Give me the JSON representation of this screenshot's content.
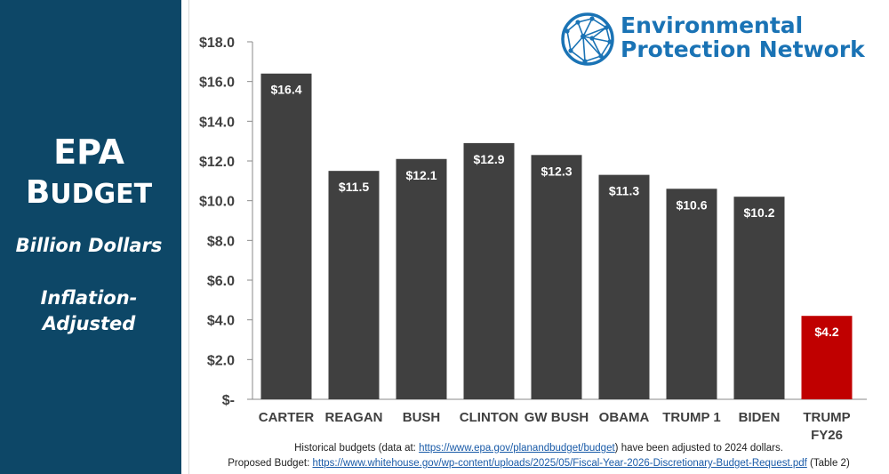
{
  "sidebar": {
    "title_line1": "EPA",
    "title_line2_big": "B",
    "title_line2_small": "UDGET",
    "subtitle1": "Billion Dollars",
    "subtitle2a": "Inflation-",
    "subtitle2b": "Adjusted"
  },
  "logo": {
    "line1": "Environmental",
    "line2": "Protection Network"
  },
  "colors": {
    "sidebar_bg": "#0d4767",
    "bar_default": "#404040",
    "bar_highlight": "#c00000",
    "logo_blue": "#1a73b5"
  },
  "chart_data": {
    "type": "bar",
    "categories": [
      [
        "CARTER"
      ],
      [
        "REAGAN"
      ],
      [
        "BUSH"
      ],
      [
        "CLINTON"
      ],
      [
        "GW BUSH"
      ],
      [
        "OBAMA"
      ],
      [
        "TRUMP 1"
      ],
      [
        "BIDEN"
      ],
      [
        "TRUMP",
        "FY26"
      ]
    ],
    "values": [
      16.4,
      11.5,
      12.1,
      12.9,
      12.3,
      11.3,
      10.6,
      10.2,
      4.2
    ],
    "data_labels": [
      "$16.4",
      "$11.5",
      "$12.1",
      "$12.9",
      "$12.3",
      "$11.3",
      "$10.6",
      "$10.2",
      "$4.2"
    ],
    "highlight_index": 8,
    "ylim": [
      0,
      18
    ],
    "yticks": [
      0,
      2,
      4,
      6,
      8,
      10,
      12,
      14,
      16,
      18
    ],
    "ytick_labels": [
      "$-",
      "$2.0",
      "$4.0",
      "$6.0",
      "$8.0",
      "$10.0",
      "$12.0",
      "$14.0",
      "$16.0",
      "$18.0"
    ],
    "grid": false
  },
  "footer": {
    "line1_pre": "Historical budgets (data at: ",
    "line1_link": "https://www.epa.gov/planandbudget/budget",
    "line1_post": ") have been adjusted to 2024 dollars.",
    "line2_pre": "Proposed Budget: ",
    "line2_link": "https://www.whitehouse.gov/wp-content/uploads/2025/05/Fiscal-Year-2026-Discretionary-Budget-Request.pdf",
    "line2_post": " (Table 2)"
  }
}
